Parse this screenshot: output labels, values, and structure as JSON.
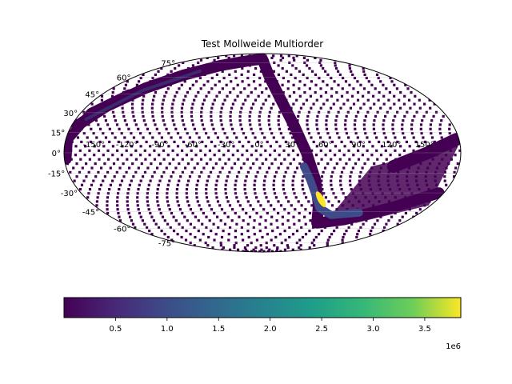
{
  "chart_data": {
    "type": "heatmap",
    "projection": "mollweide",
    "title": "Test Mollweide Multiorder",
    "grid": true,
    "lat_ticks": [
      "75°",
      "60°",
      "45°",
      "30°",
      "15°",
      "0°",
      "-15°",
      "-30°",
      "-45°",
      "-60°",
      "-75°"
    ],
    "lat_values": [
      75,
      60,
      45,
      30,
      15,
      0,
      -15,
      -30,
      -45,
      -60,
      -75
    ],
    "lon_ticks": [
      "-150°",
      "-120°",
      "-90°",
      "-60°",
      "-30°",
      "0°",
      "30°",
      "60°",
      "90°",
      "120°",
      "150°"
    ],
    "lon_values": [
      -150,
      -120,
      -90,
      -60,
      -30,
      0,
      30,
      60,
      90,
      120,
      150
    ],
    "colormap": "viridis",
    "colorbar": {
      "orientation": "horizontal",
      "range": [
        0,
        3.85
      ],
      "ticks": [
        "0.5",
        "1.0",
        "1.5",
        "2.0",
        "2.5",
        "3.0",
        "3.5"
      ],
      "tick_values": [
        0.5,
        1.0,
        1.5,
        2.0,
        2.5,
        3.0,
        3.5
      ],
      "offset_label": "1e6"
    },
    "hotspot": {
      "lon": 60,
      "lat": -35,
      "value_range": [
        0.8,
        3.85
      ]
    },
    "band_value": 0.1,
    "colors": {
      "low": "#440154",
      "band_mid": "#3e4a89",
      "high": "#fde725",
      "empty": "#ffffff"
    }
  }
}
